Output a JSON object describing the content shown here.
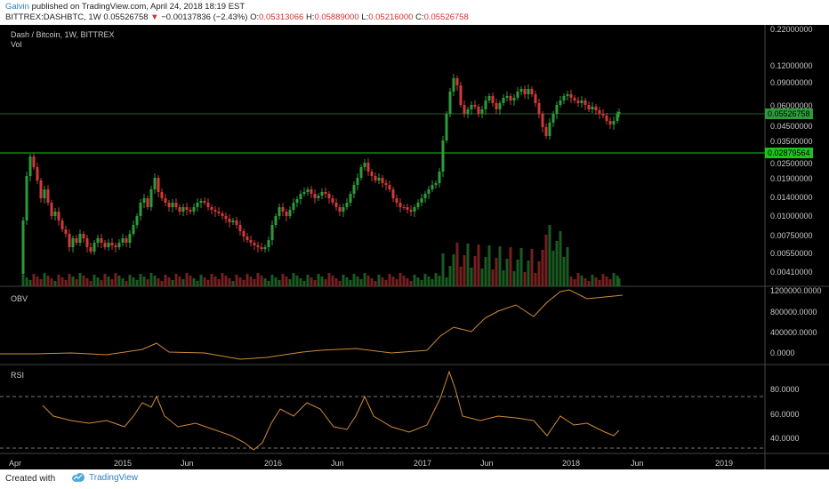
{
  "header": {
    "author": "Galvin",
    "published_text": "published on TradingView.com, April 24, 2018 18:19 EST",
    "symbol": "BITTREX:DASHBTC, 1W",
    "last": "0.05526758",
    "change": "−0.00137836 (−2.43%)",
    "open_label": "O:",
    "open": "0.05313066",
    "high_label": "H:",
    "high": "0.05889000",
    "low_label": "L:",
    "low": "0.05216000",
    "close_label": "C:",
    "close": "0.05526758"
  },
  "main_pane": {
    "title": "Dash / Bitcoin, 1W, BITTREX",
    "vol_label": "Vol",
    "price_labels": [
      "0.22000000",
      "0.12000000",
      "0.09000000",
      "0.06000000",
      "0.04500000",
      "0.03500000",
      "0.02500000",
      "0.01900000",
      "0.01400000",
      "0.01000000",
      "0.00750000",
      "0.00550000",
      "0.00410000"
    ],
    "current_price_tag": "0.05526758",
    "line_price_tag": "0.02879564",
    "colors": {
      "up": "#2e9b3b",
      "down": "#d03a3a",
      "hline": "#1dc21d",
      "tag_current": "#2e9b3b",
      "tag_line": "#1dc21d"
    }
  },
  "obv_pane": {
    "label": "OBV",
    "axis_labels": [
      "1200000.0000",
      "800000.0000",
      "400000.0000",
      "0.0000"
    ],
    "color": "#d08a3a"
  },
  "rsi_pane": {
    "label": "RSI",
    "axis_labels": [
      "80.0000",
      "60.0000",
      "40.0000"
    ],
    "color": "#d08a3a"
  },
  "x_axis": [
    "Apr",
    "2015",
    "Jun",
    "2016",
    "Jun",
    "2017",
    "Jun",
    "2018",
    "Jun",
    "2019"
  ],
  "footer": {
    "created_with": "Created with",
    "brand": "TradingView"
  }
}
